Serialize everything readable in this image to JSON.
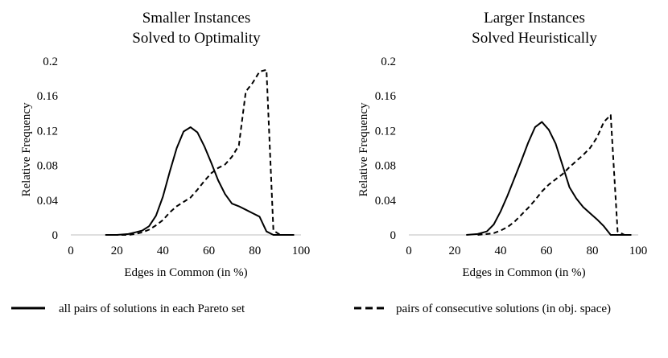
{
  "chart_data": [
    {
      "type": "line",
      "title_lines": [
        "Smaller Instances",
        "Solved to Optimality"
      ],
      "xlabel": "Edges in Common (in %)",
      "ylabel": "Relative Frequency",
      "xlim": [
        0,
        100
      ],
      "ylim": [
        0,
        0.2
      ],
      "xticks": [
        "0",
        "20",
        "40",
        "60",
        "80",
        "100"
      ],
      "yticks": [
        "0",
        "0.04",
        "0.08",
        "0.12",
        "0.16",
        "0.2"
      ],
      "grid": false,
      "series": [
        {
          "name": "all pairs of solutions in each Pareto set",
          "style": "solid",
          "x": [
            15,
            20,
            25,
            28,
            31,
            34,
            37,
            40,
            43,
            46,
            49,
            52,
            55,
            58,
            61,
            64,
            67,
            70,
            73,
            76,
            79,
            82,
            85,
            88,
            91,
            94,
            97
          ],
          "y": [
            0,
            0,
            0.001,
            0.003,
            0.005,
            0.01,
            0.022,
            0.044,
            0.073,
            0.1,
            0.119,
            0.124,
            0.118,
            0.102,
            0.083,
            0.063,
            0.047,
            0.036,
            0.033,
            0.029,
            0.025,
            0.021,
            0.004,
            0,
            0,
            0,
            0
          ]
        },
        {
          "name": "pairs of consecutive solutions (in obj. space)",
          "style": "dashed",
          "x": [
            15,
            20,
            25,
            28,
            31,
            34,
            37,
            40,
            43,
            46,
            49,
            52,
            55,
            58,
            61,
            64,
            67,
            70,
            73,
            76,
            79,
            82,
            85,
            88,
            91,
            94,
            97
          ],
          "y": [
            0,
            0,
            0,
            0.001,
            0.003,
            0.006,
            0.011,
            0.017,
            0.026,
            0.033,
            0.038,
            0.043,
            0.052,
            0.062,
            0.071,
            0.077,
            0.081,
            0.09,
            0.103,
            0.165,
            0.175,
            0.188,
            0.19,
            0.005,
            0,
            0,
            0
          ]
        }
      ]
    },
    {
      "type": "line",
      "title_lines": [
        "Larger Instances",
        "Solved Heuristically"
      ],
      "xlabel": "Edges in Common (in %)",
      "ylabel": "Relative Frequency",
      "xlim": [
        0,
        100
      ],
      "ylim": [
        0,
        0.2
      ],
      "xticks": [
        "0",
        "20",
        "40",
        "60",
        "80",
        "100"
      ],
      "yticks": [
        "0",
        "0.04",
        "0.08",
        "0.12",
        "0.16",
        "0.2"
      ],
      "grid": false,
      "series": [
        {
          "name": "all pairs of solutions in each Pareto set",
          "style": "solid",
          "x": [
            25,
            30,
            34,
            37,
            40,
            43,
            46,
            49,
            52,
            55,
            58,
            61,
            64,
            67,
            70,
            73,
            76,
            79,
            82,
            85,
            88,
            91,
            94,
            97
          ],
          "y": [
            0,
            0.001,
            0.004,
            0.012,
            0.027,
            0.045,
            0.065,
            0.085,
            0.106,
            0.124,
            0.13,
            0.121,
            0.105,
            0.08,
            0.055,
            0.042,
            0.032,
            0.025,
            0.018,
            0.01,
            0,
            0,
            0,
            0
          ]
        },
        {
          "name": "pairs of consecutive solutions (in obj. space)",
          "style": "dashed",
          "x": [
            30,
            34,
            37,
            40,
            43,
            46,
            49,
            52,
            55,
            58,
            61,
            64,
            67,
            70,
            73,
            76,
            79,
            82,
            85,
            88,
            91,
            94,
            97
          ],
          "y": [
            0,
            0.001,
            0.002,
            0.005,
            0.009,
            0.015,
            0.023,
            0.031,
            0.04,
            0.05,
            0.058,
            0.064,
            0.07,
            0.078,
            0.085,
            0.092,
            0.1,
            0.112,
            0.13,
            0.138,
            0.004,
            0,
            0
          ]
        }
      ]
    }
  ],
  "legend": {
    "solid_label": "all pairs of solutions in each Pareto set",
    "dashed_label": "pairs of consecutive solutions (in obj. space)"
  }
}
